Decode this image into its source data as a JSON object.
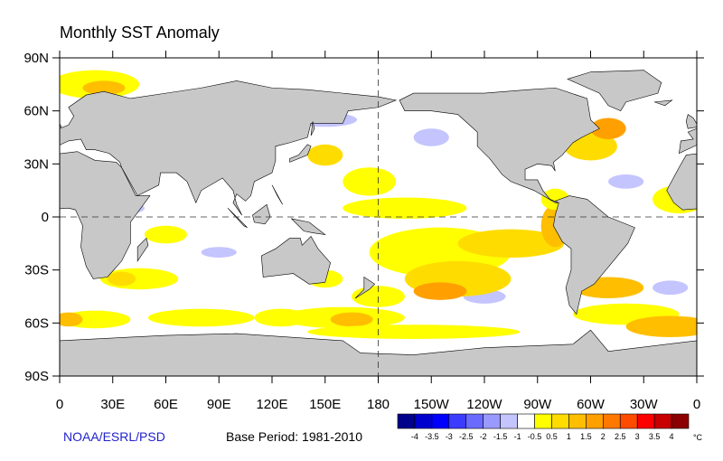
{
  "map": {
    "title": "Monthly SST Anomaly",
    "lon_ticks": [
      {
        "value": 0,
        "label": "0"
      },
      {
        "value": 30,
        "label": "30E"
      },
      {
        "value": 60,
        "label": "60E"
      },
      {
        "value": 90,
        "label": "90E"
      },
      {
        "value": 120,
        "label": "120E"
      },
      {
        "value": 150,
        "label": "150E"
      },
      180,
      {
        "value": 210,
        "label": "150W"
      },
      {
        "value": 240,
        "label": "120W"
      },
      {
        "value": 270,
        "label": "90W"
      },
      {
        "value": 300,
        "label": "60W"
      },
      {
        "value": 330,
        "label": "30W"
      },
      {
        "value": 360,
        "label": "0"
      }
    ],
    "lat_ticks": [
      {
        "value": 90,
        "label": "90N"
      },
      {
        "value": 60,
        "label": "60N"
      },
      {
        "value": 30,
        "label": "30N"
      },
      0,
      {
        "value": -30,
        "label": "30S"
      },
      {
        "value": -60,
        "label": "60S"
      },
      {
        "value": -90,
        "label": "90S"
      }
    ],
    "source": "NOAA/ESRL/PSD",
    "base_period": "Base Period: 1981-2010",
    "colorbar": {
      "levels": [
        -4,
        -3.5,
        -3,
        -2.5,
        -2,
        -1.5,
        -1,
        -0.5,
        0.5,
        1,
        1.5,
        2,
        2.5,
        3,
        3.5,
        4
      ],
      "colors": [
        "#00008b",
        "#0000cd",
        "#0000ff",
        "#3c3cff",
        "#6a6aff",
        "#9999ff",
        "#c4c4ff",
        "#ffffff",
        "#ffff00",
        "#ffdc00",
        "#ffbe00",
        "#ffa000",
        "#ff7800",
        "#ff4b00",
        "#ff0000",
        "#c80000",
        "#8b0000"
      ],
      "unit": "°C"
    }
  }
}
